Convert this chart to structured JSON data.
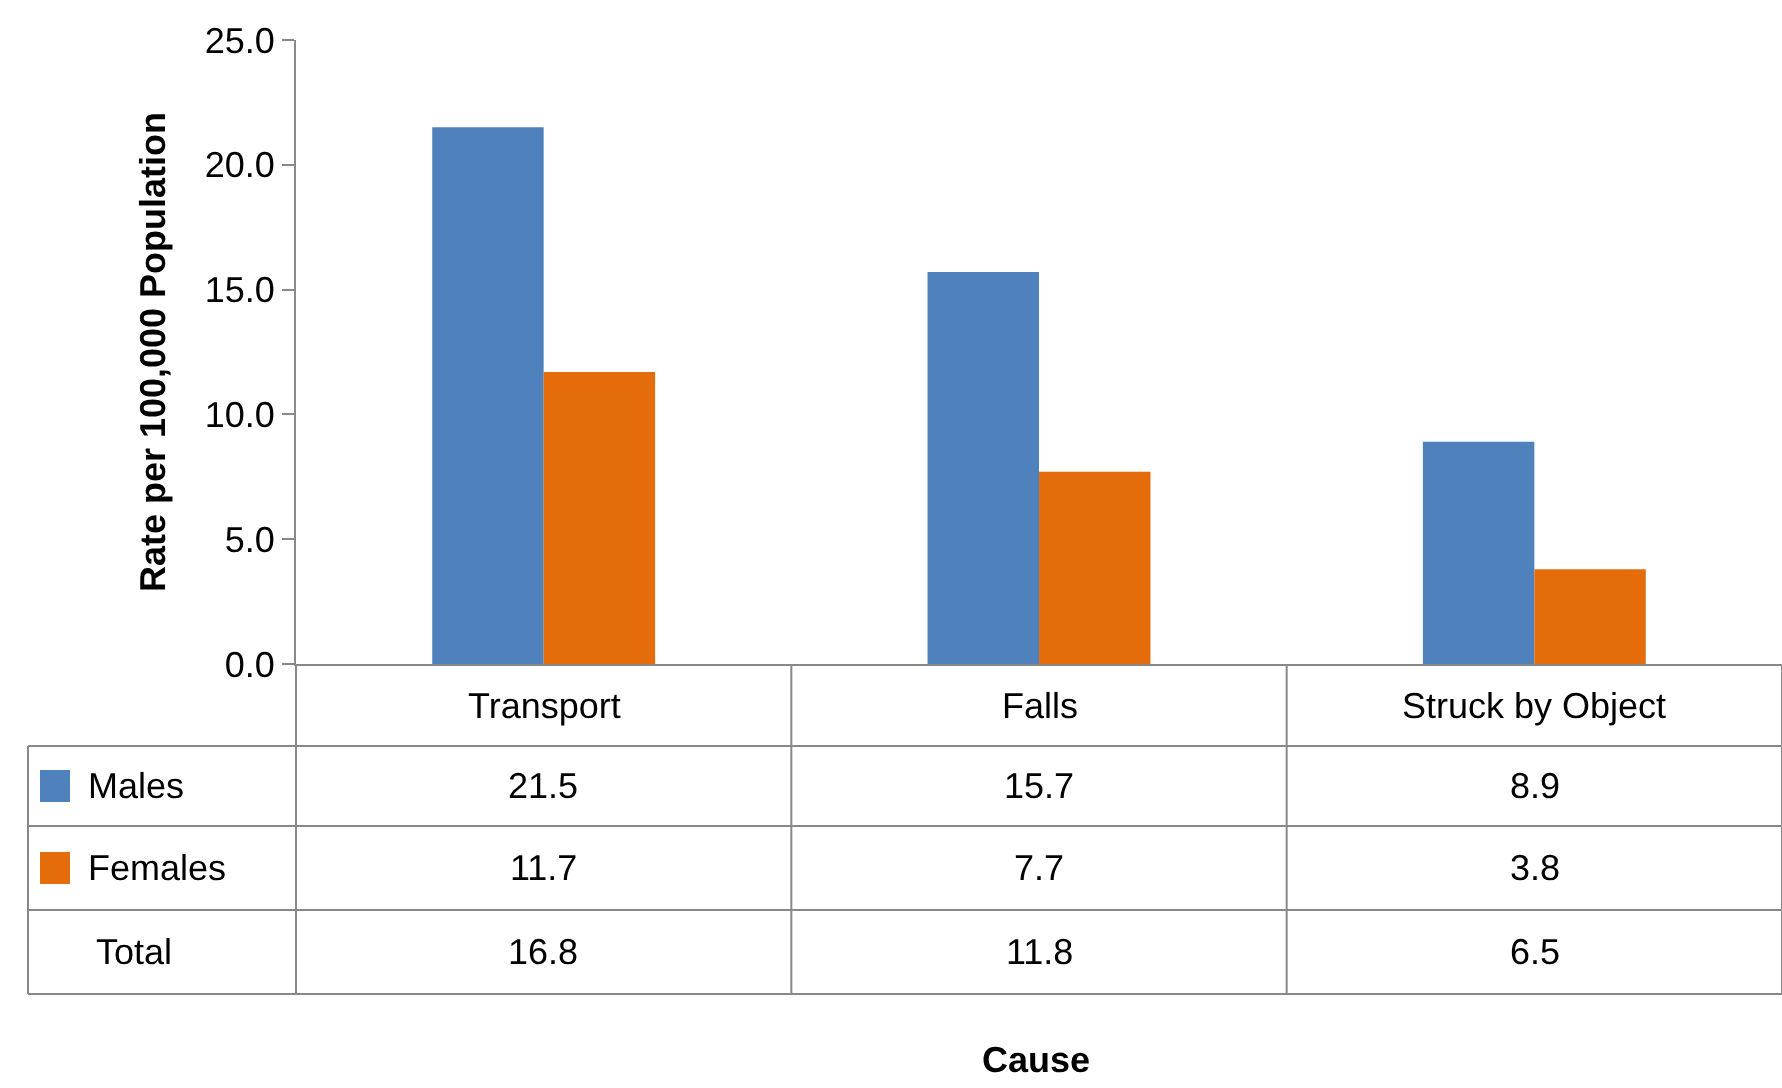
{
  "chart_data": {
    "type": "bar",
    "ylabel": "Rate per 100,000 Population",
    "legend": "bottom left",
    "categories": [
      "Transport",
      "Falls",
      "Struck by Object"
    ],
    "series": [
      {
        "name": "Males",
        "color": "#4f81bd",
        "values": [
          21.5,
          15.7,
          8.9
        ]
      },
      {
        "name": "Females",
        "color": "#e46c0a",
        "values": [
          11.7,
          7.7,
          3.8
        ]
      }
    ],
    "ylim": [
      0,
      25
    ],
    "yticks": [
      {
        "value": 0,
        "label": "0.0"
      },
      {
        "value": 5,
        "label": "5.0"
      },
      {
        "value": 10,
        "label": "10.0"
      },
      {
        "value": 15,
        "label": "15.0"
      },
      {
        "value": 20,
        "label": "20.0"
      },
      {
        "value": 25,
        "label": "25.0"
      }
    ],
    "data_labels": true,
    "annotations": [
      "Total",
      "16.8",
      "11.8",
      "6.5",
      "Cause"
    ]
  }
}
